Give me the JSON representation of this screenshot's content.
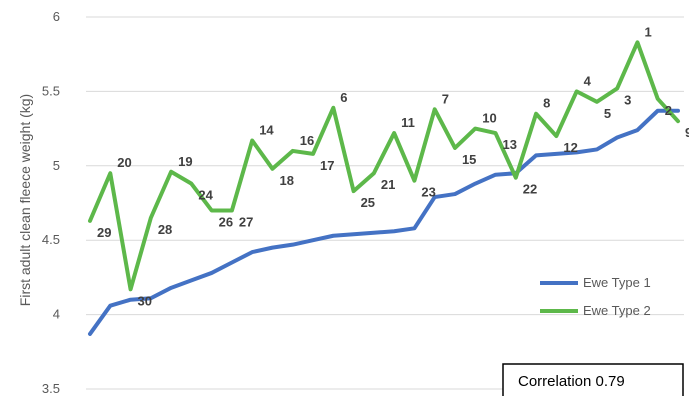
{
  "chart_data": {
    "type": "line",
    "title": "",
    "ylabel": "First adult clean fleece weight (kg)",
    "xlabel": "",
    "ylim": [
      3.5,
      6
    ],
    "yticks": [
      "3.5",
      "4",
      "4.5",
      "5",
      "5.5",
      "6"
    ],
    "grid": true,
    "legend_position": "right",
    "x": [
      1,
      2,
      3,
      4,
      5,
      6,
      7,
      8,
      9,
      10,
      11,
      12,
      13,
      14,
      15,
      16,
      17,
      18,
      19,
      20,
      21,
      22,
      23,
      24,
      25,
      26,
      27,
      28,
      29,
      30
    ],
    "series": [
      {
        "name": "Ewe Type 1",
        "color": "#4472C4",
        "values": [
          3.87,
          4.06,
          4.1,
          4.11,
          4.18,
          4.23,
          4.28,
          4.35,
          4.42,
          4.45,
          4.47,
          4.5,
          4.53,
          4.54,
          4.55,
          4.56,
          4.58,
          4.79,
          4.81,
          4.88,
          4.94,
          4.95,
          5.07,
          5.08,
          5.09,
          5.11,
          5.19,
          5.24,
          5.37,
          5.37
        ]
      },
      {
        "name": "Ewe Type 2",
        "color": "#5DB84A",
        "values": [
          4.63,
          4.95,
          4.17,
          4.65,
          4.96,
          4.88,
          4.7,
          4.7,
          5.17,
          4.98,
          5.1,
          5.08,
          5.39,
          4.83,
          4.95,
          5.22,
          4.9,
          5.38,
          5.12,
          5.25,
          5.22,
          4.92,
          5.35,
          5.2,
          5.5,
          5.43,
          5.52,
          5.83,
          5.45,
          5.3
        ]
      }
    ],
    "point_labels": [
      "29",
      "20",
      "30",
      "28",
      "19",
      "24",
      "26",
      "27",
      "14",
      "18",
      "16",
      "17",
      "6",
      "25",
      "21",
      "11",
      "23",
      "7",
      "15",
      "10",
      "13",
      "22",
      "8",
      "12",
      "4",
      "5",
      "3",
      "1",
      "2",
      "9"
    ],
    "annotation": "Correlation 0.79"
  }
}
